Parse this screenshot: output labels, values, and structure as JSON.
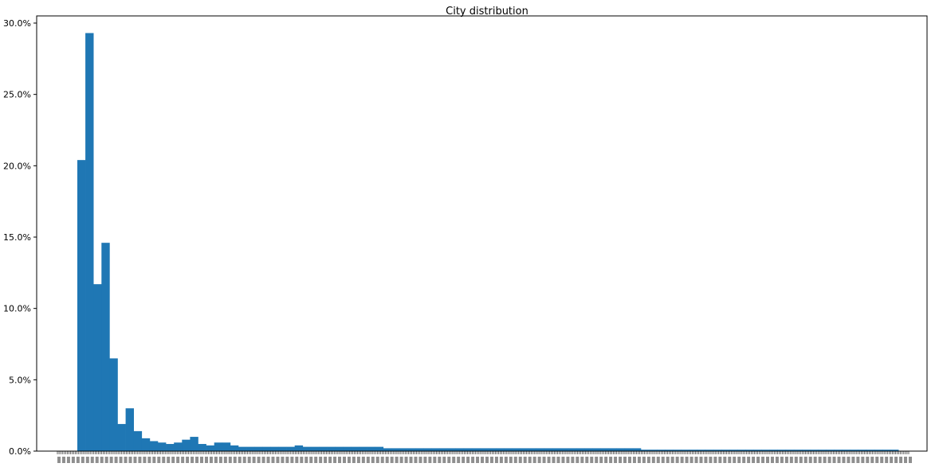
{
  "chart_data": {
    "type": "bar",
    "title": "City distribution",
    "xlabel": "",
    "ylabel": "",
    "ylim": [
      0,
      0.3
    ],
    "yticks": [
      "0.0%",
      "5.0%",
      "10.0%",
      "15.0%",
      "20.0%",
      "25.0%",
      "30.0%"
    ],
    "grid": false,
    "legend": "none",
    "bar_color": "#1f77b4",
    "values": [
      0.204,
      0.293,
      0.117,
      0.146,
      0.065,
      0.019,
      0.03,
      0.014,
      0.009,
      0.007,
      0.006,
      0.005,
      0.006,
      0.008,
      0.01,
      0.005,
      0.004,
      0.006,
      0.006,
      0.004,
      0.003,
      0.003,
      0.003,
      0.003,
      0.003,
      0.003,
      0.003,
      0.004,
      0.003,
      0.003,
      0.003,
      0.003,
      0.003,
      0.003,
      0.003,
      0.003,
      0.003,
      0.003,
      0.002,
      0.002,
      0.002,
      0.002,
      0.002,
      0.002,
      0.002,
      0.002,
      0.002,
      0.002,
      0.002,
      0.002,
      0.002,
      0.002,
      0.002,
      0.002,
      0.002,
      0.002,
      0.002,
      0.002,
      0.002,
      0.002,
      0.002,
      0.002,
      0.002,
      0.002,
      0.002,
      0.002,
      0.002,
      0.002,
      0.002,
      0.002,
      0.001,
      0.001,
      0.001,
      0.001,
      0.001,
      0.001,
      0.001,
      0.001,
      0.001,
      0.001,
      0.001,
      0.001,
      0.001,
      0.001,
      0.001,
      0.001,
      0.001,
      0.001,
      0.001,
      0.001,
      0.001,
      0.001,
      0.001,
      0.001,
      0.001,
      0.001,
      0.001,
      0.001,
      0.001,
      0.001,
      0.001,
      0.001
    ],
    "category_count_note_hidden": ""
  }
}
